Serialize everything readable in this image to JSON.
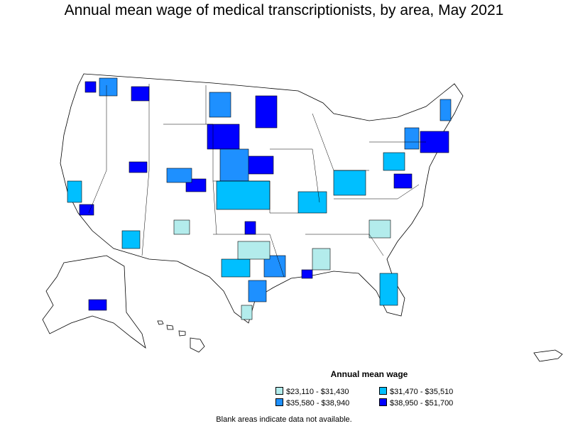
{
  "title": "Annual mean wage of medical transcriptionists, by area, May 2021",
  "legend": {
    "title": "Annual mean wage",
    "items": [
      {
        "label": "$23,110 - $31,430",
        "color": "#b3ecec"
      },
      {
        "label": "$31,470 - $35,510",
        "color": "#00bfff"
      },
      {
        "label": "$35,580 - $38,940",
        "color": "#1e90ff"
      },
      {
        "label": "$38,950 - $51,700",
        "color": "#0000ff"
      }
    ]
  },
  "note": "Blank areas indicate data not available.",
  "colors": {
    "background": "#ffffff",
    "blank": "#ffffff",
    "border": "#000000"
  }
}
